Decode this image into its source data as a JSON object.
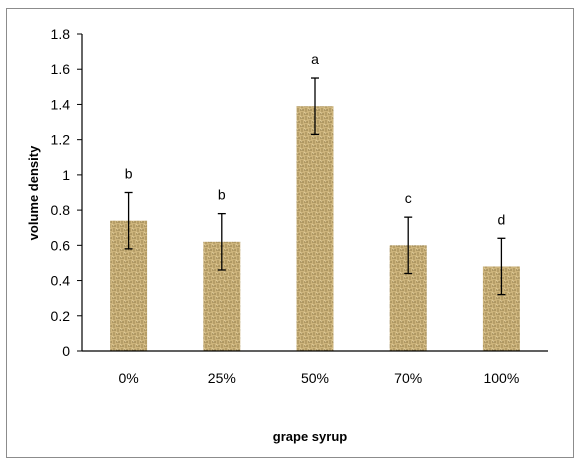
{
  "chart_data": {
    "type": "bar",
    "categories": [
      "0%",
      "25%",
      "50%",
      "70%",
      "100%"
    ],
    "values": [
      0.74,
      0.62,
      1.39,
      0.6,
      0.48
    ],
    "error": [
      0.16,
      0.16,
      0.16,
      0.16,
      0.16
    ],
    "significance_labels": [
      "b",
      "b",
      "a",
      "c",
      "d"
    ],
    "xlabel": "grape syrup",
    "ylabel": "volume density",
    "ylim": [
      0,
      1.8
    ],
    "yticks": [
      0,
      0.2,
      0.4,
      0.6,
      0.8,
      1,
      1.2,
      1.4,
      1.6,
      1.8
    ],
    "ytick_labels": [
      "0",
      "0.2",
      "0.4",
      "0.6",
      "0.8",
      "1",
      "1.2",
      "1.4",
      "1.6",
      "1.8"
    ],
    "grid": false,
    "legend": "none",
    "bar_color": "#c9b078",
    "bar_pattern_color": "#7a6638"
  }
}
